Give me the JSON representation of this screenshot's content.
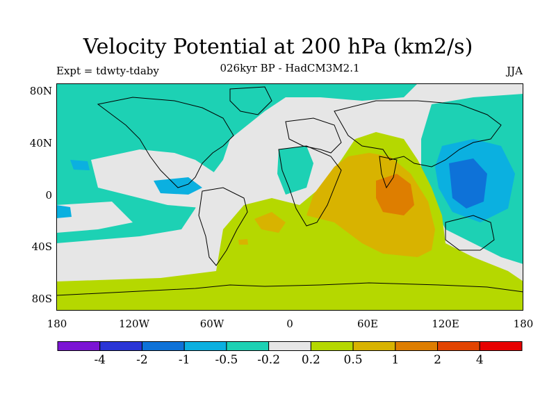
{
  "header": {
    "title": "Velocity Potential at 200 hPa (km2/s)",
    "subtitle": "026kyr BP - HadCM3M2.1",
    "left_label": "Expt = tdwty-tdaby",
    "right_label": "JJA"
  },
  "axes": {
    "y_ticks": [
      "80N",
      "40N",
      "0",
      "40S",
      "80S"
    ],
    "x_ticks": [
      "180",
      "120W",
      "60W",
      "0",
      "60E",
      "120E",
      "180"
    ]
  },
  "colorbar": {
    "colors": [
      "#7b15d4",
      "#2a35d6",
      "#0e72d8",
      "#0bb0e0",
      "#1dd1b4",
      "#e6e6e6",
      "#b5d800",
      "#d8b300",
      "#de7e00",
      "#e24400",
      "#e60000"
    ],
    "labels": [
      "-4",
      "-2",
      "-1",
      "-0.5",
      "-0.2",
      "0.2",
      "0.5",
      "1",
      "2",
      "4"
    ]
  },
  "map": {
    "ocean_background": "#e6e6e6",
    "coastline_color": "#000000"
  }
}
